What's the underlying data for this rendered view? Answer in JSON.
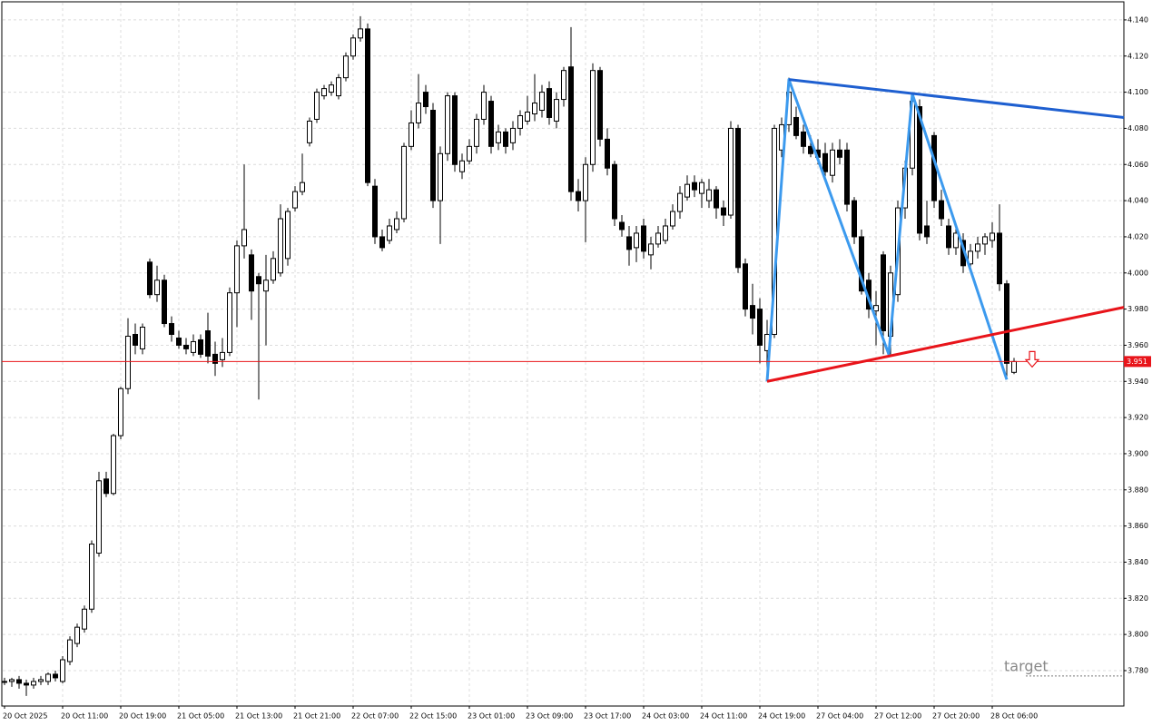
{
  "chart_data": {
    "type": "candlestick",
    "categories": [
      "20 Oct 2025",
      null,
      null,
      null,
      null,
      null,
      null,
      null,
      "20 Oct 11:00",
      null,
      null,
      null,
      null,
      null,
      null,
      null,
      "20 Oct 19:00",
      null,
      null,
      null,
      null,
      null,
      null,
      null,
      "21 Oct 05:00",
      null,
      null,
      null,
      null,
      null,
      null,
      null,
      "21 Oct 13:00",
      null,
      null,
      null,
      null,
      null,
      null,
      null,
      "21 Oct 21:00",
      null,
      null,
      null,
      null,
      null,
      null,
      null,
      "22 Oct 07:00",
      null,
      null,
      null,
      null,
      null,
      null,
      null,
      "22 Oct 15:00",
      null,
      null,
      null,
      null,
      null,
      null,
      null,
      "23 Oct 01:00",
      null,
      null,
      null,
      null,
      null,
      null,
      null,
      "23 Oct 09:00",
      null,
      null,
      null,
      null,
      null,
      null,
      null,
      "23 Oct 17:00",
      null,
      null,
      null,
      null,
      null,
      null,
      null,
      "24 Oct 03:00",
      null,
      null,
      null,
      null,
      null,
      null,
      null,
      "24 Oct 11:00",
      null,
      null,
      null,
      null,
      null,
      null,
      null,
      "24 Oct 19:00",
      null,
      null,
      null,
      null,
      null,
      null,
      null,
      "27 Oct 04:00",
      null,
      null,
      null,
      null,
      null,
      null,
      null,
      "27 Oct 12:00",
      null,
      null,
      null,
      null,
      null,
      null,
      null,
      "27 Oct 20:00",
      null,
      null,
      null,
      null,
      null,
      null,
      null,
      "28 Oct 06:00",
      null,
      null,
      null
    ],
    "open": [
      3.774,
      3.774,
      3.775,
      3.773,
      3.772,
      3.774,
      3.774,
      3.778,
      3.774,
      3.785,
      3.795,
      3.803,
      3.814,
      3.845,
      3.886,
      3.878,
      3.91,
      3.936,
      3.966,
      3.958,
      4.006,
      3.988,
      3.996,
      3.972,
      3.964,
      3.96,
      3.956,
      3.963,
      3.968,
      3.955,
      3.952,
      3.956,
      3.989,
      4.015,
      4.01,
      3.998,
      3.99,
      3.996,
      4.0,
      4.008,
      4.036,
      4.045,
      4.072,
      4.085,
      4.098,
      4.1,
      4.098,
      4.108,
      4.12,
      4.13,
      4.135,
      4.048,
      4.02,
      4.018,
      4.024,
      4.03,
      4.07,
      4.083,
      4.1,
      4.09,
      4.04,
      4.066,
      4.098,
      4.056,
      4.062,
      4.07,
      4.085,
      4.095,
      4.072,
      4.078,
      4.072,
      4.08,
      4.084,
      4.088,
      4.09,
      4.102,
      4.084,
      4.096,
      4.114,
      4.045,
      4.04,
      4.06,
      4.112,
      4.074,
      4.06,
      4.028,
      4.02,
      4.014,
      4.026,
      4.01,
      4.016,
      4.018,
      4.026,
      4.034,
      4.042,
      4.05,
      4.044,
      4.04,
      4.046,
      4.036,
      4.032,
      4.08,
      4.005,
      3.982,
      3.98,
      3.957,
      3.966,
      4.068,
      4.082,
      4.086,
      4.078,
      4.07,
      4.068,
      4.066,
      4.054,
      4.068,
      4.068,
      4.04,
      4.02,
      3.996,
      3.979,
      4.01,
      3.965,
      3.988,
      4.036,
      4.058,
      4.092,
      4.026,
      4.076,
      4.04,
      4.026,
      4.014,
      4.018,
      4.005,
      4.012,
      4.016,
      4.018,
      4.022,
      3.994,
      3.945
    ],
    "high": [
      3.776,
      3.776,
      3.777,
      3.775,
      3.776,
      3.777,
      3.779,
      3.78,
      3.788,
      3.799,
      3.806,
      3.816,
      3.852,
      3.89,
      3.89,
      3.911,
      3.937,
      3.975,
      3.972,
      3.972,
      4.008,
      4.004,
      3.999,
      3.976,
      3.968,
      3.964,
      3.966,
      3.966,
      3.978,
      3.962,
      3.964,
      3.992,
      4.018,
      4.06,
      4.013,
      4.0,
      4.01,
      4.012,
      4.038,
      4.036,
      4.048,
      4.066,
      4.086,
      4.102,
      4.104,
      4.106,
      4.11,
      4.122,
      4.132,
      4.142,
      4.138,
      4.052,
      4.024,
      4.03,
      4.034,
      4.072,
      4.09,
      4.11,
      4.104,
      4.094,
      4.07,
      4.1,
      4.1,
      4.066,
      4.074,
      4.088,
      4.104,
      4.098,
      4.082,
      4.08,
      4.084,
      4.09,
      4.098,
      4.11,
      4.104,
      4.106,
      4.1,
      4.114,
      4.136,
      4.052,
      4.064,
      4.116,
      4.114,
      4.08,
      4.062,
      4.032,
      4.026,
      4.026,
      4.03,
      4.02,
      4.026,
      4.03,
      4.038,
      4.048,
      4.054,
      4.054,
      4.052,
      4.052,
      4.048,
      4.04,
      4.084,
      4.082,
      4.008,
      3.994,
      3.986,
      3.974,
      4.082,
      4.086,
      4.108,
      4.092,
      4.082,
      4.076,
      4.074,
      4.072,
      4.072,
      4.074,
      4.072,
      4.042,
      4.024,
      4.0,
      3.99,
      4.012,
      4.004,
      4.04,
      4.062,
      4.1,
      4.096,
      4.04,
      4.078,
      4.046,
      4.03,
      4.026,
      4.022,
      4.016,
      4.02,
      4.022,
      4.028,
      4.038,
      3.996,
      3.953
    ],
    "low": [
      3.772,
      3.771,
      3.77,
      3.766,
      3.77,
      3.772,
      3.772,
      3.774,
      3.773,
      3.783,
      3.793,
      3.801,
      3.812,
      3.843,
      3.876,
      3.877,
      3.908,
      3.933,
      3.955,
      3.955,
      3.986,
      3.984,
      3.97,
      3.962,
      3.958,
      3.955,
      3.954,
      3.953,
      3.95,
      3.943,
      3.948,
      3.954,
      3.97,
      4.008,
      3.974,
      3.93,
      3.96,
      3.994,
      3.998,
      4.004,
      4.034,
      4.043,
      4.07,
      4.083,
      4.096,
      4.098,
      4.096,
      4.106,
      4.118,
      4.128,
      4.048,
      4.016,
      4.012,
      4.016,
      4.022,
      4.028,
      4.068,
      4.08,
      4.088,
      4.036,
      4.016,
      4.062,
      4.056,
      4.052,
      4.06,
      4.066,
      4.082,
      4.066,
      4.068,
      4.066,
      4.068,
      4.076,
      4.082,
      4.084,
      4.086,
      4.082,
      4.08,
      4.092,
      4.04,
      4.034,
      4.017,
      4.056,
      4.07,
      4.054,
      4.026,
      4.02,
      4.004,
      4.006,
      4.008,
      4.002,
      4.014,
      4.016,
      4.024,
      4.03,
      4.04,
      4.042,
      4.036,
      4.036,
      4.03,
      4.026,
      4.03,
      4.0,
      3.976,
      3.966,
      3.95,
      3.944,
      3.964,
      4.064,
      4.078,
      4.074,
      4.066,
      4.064,
      4.06,
      4.052,
      4.05,
      4.06,
      4.034,
      4.016,
      3.988,
      3.975,
      3.96,
      3.955,
      3.955,
      3.984,
      4.03,
      4.054,
      4.018,
      4.016,
      4.036,
      4.026,
      4.01,
      4.01,
      4.0,
      4.002,
      4.008,
      4.01,
      4.014,
      3.99,
      3.942,
      3.944
    ],
    "close": [
      3.774,
      3.775,
      3.773,
      3.772,
      3.774,
      3.775,
      3.778,
      3.776,
      3.786,
      3.797,
      3.804,
      3.814,
      3.85,
      3.885,
      3.878,
      3.91,
      3.936,
      3.965,
      3.96,
      3.97,
      3.988,
      3.996,
      3.972,
      3.966,
      3.96,
      3.958,
      3.962,
      3.955,
      3.954,
      3.95,
      3.956,
      3.989,
      4.015,
      4.024,
      3.99,
      3.994,
      3.996,
      4.008,
      4.03,
      4.034,
      4.045,
      4.05,
      4.084,
      4.1,
      4.102,
      4.104,
      4.108,
      4.12,
      4.13,
      4.135,
      4.05,
      4.02,
      4.014,
      4.026,
      4.03,
      4.07,
      4.083,
      4.094,
      4.092,
      4.04,
      4.066,
      4.098,
      4.06,
      4.062,
      4.07,
      4.085,
      4.1,
      4.07,
      4.078,
      4.07,
      4.08,
      4.087,
      4.089,
      4.094,
      4.1,
      4.086,
      4.096,
      4.112,
      4.045,
      4.04,
      4.06,
      4.112,
      4.074,
      4.058,
      4.03,
      4.024,
      4.013,
      4.022,
      4.012,
      4.016,
      4.022,
      4.026,
      4.034,
      4.044,
      4.049,
      4.046,
      4.05,
      4.046,
      4.036,
      4.032,
      4.08,
      4.003,
      3.98,
      3.975,
      3.96,
      3.966,
      4.08,
      4.082,
      4.1,
      4.076,
      4.07,
      4.066,
      4.064,
      4.056,
      4.068,
      4.064,
      4.038,
      4.02,
      3.99,
      3.98,
      3.982,
      3.968,
      4.0,
      4.036,
      4.058,
      4.095,
      4.022,
      4.02,
      4.04,
      4.03,
      4.014,
      4.022,
      4.004,
      4.012,
      4.016,
      4.02,
      4.022,
      3.994,
      3.95,
      3.951
    ],
    "xlim": [
      -0.375,
      154.125
    ],
    "ylim": [
      3.7604,
      4.15
    ],
    "yticks": [
      {
        "value": 4.14,
        "label": "4.140"
      },
      {
        "value": 4.12,
        "label": "4.120"
      },
      {
        "value": 4.1,
        "label": "4.100"
      },
      {
        "value": 4.08,
        "label": "4.080"
      },
      {
        "value": 4.06,
        "label": "4.060"
      },
      {
        "value": 4.04,
        "label": "4.040"
      },
      {
        "value": 4.02,
        "label": "4.020"
      },
      {
        "value": 4.0,
        "label": "4.000"
      },
      {
        "value": 3.98,
        "label": "3.980"
      },
      {
        "value": 3.96,
        "label": "3.960"
      },
      {
        "value": 3.94,
        "label": "3.940"
      },
      {
        "value": 3.92,
        "label": "3.920"
      },
      {
        "value": 3.9,
        "label": "3.900"
      },
      {
        "value": 3.88,
        "label": "3.880"
      },
      {
        "value": 3.86,
        "label": "3.860"
      },
      {
        "value": 3.84,
        "label": "3.840"
      },
      {
        "value": 3.82,
        "label": "3.820"
      },
      {
        "value": 3.8,
        "label": "3.800"
      },
      {
        "value": 3.78,
        "label": "3.780"
      }
    ],
    "grid": true,
    "up_color": "#ffffff",
    "down_color": "#000000",
    "current_price": 3.951,
    "current_price_color": "#e8141a",
    "trendlines": [
      {
        "color": "#3c9aee",
        "x": [
          105,
          108,
          121.75,
          125,
          138
        ],
        "y": [
          3.94,
          4.107,
          3.955,
          4.099,
          3.941
        ]
      },
      {
        "color": "#1e5fd0",
        "x": [
          108,
          154.125
        ],
        "y": [
          4.107,
          4.086
        ]
      },
      {
        "color": "#e8141a",
        "x": [
          105,
          154.125
        ],
        "y": [
          3.94,
          3.981
        ]
      }
    ],
    "signal_arrow": {
      "x": 141.5,
      "y": 3.948,
      "color": "#e8141a"
    },
    "target_label": "target",
    "target_level": 3.777
  }
}
